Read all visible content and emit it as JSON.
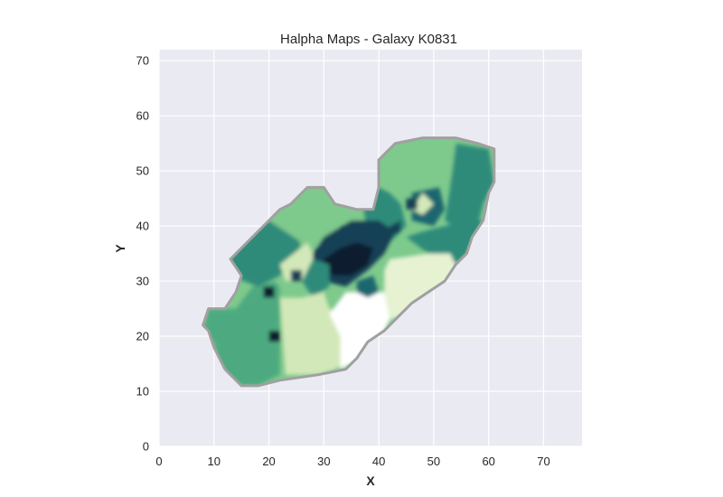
{
  "chart_data": {
    "type": "heatmap",
    "title": "Halpha Maps - Galaxy K0831",
    "xlabel": "X",
    "ylabel": "Y",
    "xlim": [
      0,
      77
    ],
    "ylim": [
      0,
      72
    ],
    "xticks": [
      0,
      10,
      20,
      30,
      40,
      50,
      60,
      70
    ],
    "yticks": [
      0,
      10,
      20,
      30,
      40,
      50,
      60,
      70
    ],
    "grid": true,
    "colormap": "YlGnBu-like (white → light green → teal → dark navy)",
    "colors": {
      "background": "#EAEAF2",
      "grid": "#FFFFFF",
      "outline": "#A0A0A0",
      "white": "#FFFFFF",
      "pale": "#E6F2D2",
      "light_green": "#D2E8B8",
      "green": "#7EC98C",
      "mid_green": "#4DAA80",
      "teal": "#2E8B7A",
      "dark_teal": "#1F6670",
      "navy": "#173F55",
      "darkest": "#0C1F2E"
    },
    "regions": [
      {
        "level": "mid_green",
        "polygon": [
          [
            9,
            25
          ],
          [
            14,
            25
          ],
          [
            17,
            29
          ],
          [
            21,
            30
          ],
          [
            22,
            29
          ],
          [
            22,
            13
          ],
          [
            18,
            11
          ],
          [
            15,
            11
          ],
          [
            11,
            14
          ],
          [
            10,
            19
          ],
          [
            8,
            21
          ]
        ]
      },
      {
        "level": "teal",
        "polygon": [
          [
            13,
            34
          ],
          [
            17,
            39
          ],
          [
            20,
            41
          ],
          [
            25,
            40
          ],
          [
            26,
            35
          ],
          [
            22,
            31
          ],
          [
            18,
            29
          ],
          [
            13,
            31
          ]
        ]
      },
      {
        "level": "green",
        "polygon": [
          [
            20,
            41
          ],
          [
            24,
            44
          ],
          [
            27,
            47
          ],
          [
            30,
            47
          ],
          [
            32,
            43
          ],
          [
            33,
            38
          ],
          [
            30,
            36
          ],
          [
            26,
            37
          ]
        ]
      },
      {
        "level": "light_green",
        "polygon": [
          [
            22,
            33
          ],
          [
            27,
            37
          ],
          [
            29,
            33
          ],
          [
            27,
            30
          ],
          [
            23,
            30
          ]
        ]
      },
      {
        "level": "light_green",
        "polygon": [
          [
            22,
            27
          ],
          [
            26,
            27
          ],
          [
            31,
            25
          ],
          [
            35,
            24
          ],
          [
            37,
            22
          ],
          [
            36,
            16
          ],
          [
            32,
            14
          ],
          [
            29,
            13
          ],
          [
            23,
            13
          ]
        ]
      },
      {
        "level": "green",
        "polygon": [
          [
            33,
            43
          ],
          [
            37,
            44
          ],
          [
            40,
            44
          ],
          [
            38,
            40
          ],
          [
            34,
            39
          ]
        ]
      },
      {
        "level": "teal",
        "polygon": [
          [
            37,
            44
          ],
          [
            40,
            47
          ],
          [
            42,
            46
          ],
          [
            44,
            44
          ],
          [
            45,
            40
          ],
          [
            42,
            37
          ],
          [
            38,
            38
          ]
        ]
      },
      {
        "level": "green",
        "polygon": [
          [
            40,
            52
          ],
          [
            43,
            56
          ],
          [
            49,
            56
          ],
          [
            54,
            55
          ],
          [
            54,
            49
          ],
          [
            48,
            49
          ],
          [
            44,
            46
          ],
          [
            41,
            47
          ]
        ]
      },
      {
        "level": "teal",
        "polygon": [
          [
            54,
            55
          ],
          [
            60,
            54
          ],
          [
            61,
            48
          ],
          [
            59,
            44
          ],
          [
            58,
            40
          ],
          [
            55,
            39
          ],
          [
            52,
            41
          ],
          [
            53,
            47
          ]
        ]
      },
      {
        "level": "dark_teal",
        "polygon": [
          [
            46,
            46
          ],
          [
            51,
            47
          ],
          [
            52,
            43
          ],
          [
            50,
            40
          ],
          [
            46,
            41
          ]
        ]
      },
      {
        "level": "teal",
        "polygon": [
          [
            48,
            39
          ],
          [
            52,
            40
          ],
          [
            56,
            41
          ],
          [
            59,
            41
          ],
          [
            56,
            35
          ],
          [
            54,
            33
          ],
          [
            49,
            35
          ],
          [
            45,
            38
          ]
        ]
      },
      {
        "level": "pale",
        "polygon": [
          [
            42,
            34
          ],
          [
            49,
            35
          ],
          [
            53,
            35
          ],
          [
            55,
            31
          ],
          [
            54,
            29
          ],
          [
            50,
            26
          ],
          [
            45,
            24
          ],
          [
            42,
            23
          ],
          [
            41,
            28
          ],
          [
            41,
            32
          ]
        ]
      },
      {
        "level": "white",
        "polygon": [
          [
            31,
            24
          ],
          [
            34,
            28
          ],
          [
            38,
            28
          ],
          [
            41,
            28
          ],
          [
            42,
            23
          ],
          [
            41,
            21
          ],
          [
            39,
            19
          ],
          [
            37,
            16
          ],
          [
            33,
            14
          ],
          [
            33,
            20
          ]
        ]
      },
      {
        "level": "navy",
        "polygon": [
          [
            28,
            35
          ],
          [
            30,
            38
          ],
          [
            35,
            41
          ],
          [
            40,
            41
          ],
          [
            43,
            39
          ],
          [
            41,
            35
          ],
          [
            38,
            32
          ],
          [
            34,
            29
          ],
          [
            30,
            30
          ],
          [
            28,
            32
          ]
        ]
      },
      {
        "level": "darkest",
        "polygon": [
          [
            30,
            34
          ],
          [
            33,
            36
          ],
          [
            36,
            37
          ],
          [
            39,
            36
          ],
          [
            38,
            33
          ],
          [
            35,
            31
          ],
          [
            32,
            31
          ],
          [
            30,
            32
          ]
        ]
      },
      {
        "level": "teal",
        "polygon": [
          [
            26,
            30
          ],
          [
            28,
            34
          ],
          [
            31,
            33
          ],
          [
            31,
            29
          ],
          [
            28,
            27
          ]
        ]
      },
      {
        "level": "dark_teal",
        "polygon": [
          [
            36,
            30
          ],
          [
            39,
            31
          ],
          [
            40,
            28
          ],
          [
            38,
            27
          ],
          [
            36,
            28
          ]
        ]
      },
      {
        "level": "light_green",
        "polygon": [
          [
            26,
            27
          ],
          [
            30,
            28
          ],
          [
            31,
            25
          ],
          [
            27,
            25
          ]
        ]
      },
      {
        "level": "light_green",
        "polygon": [
          [
            46,
            43
          ],
          [
            48,
            46
          ],
          [
            50,
            44
          ],
          [
            48,
            42
          ]
        ]
      },
      {
        "level": "darkest",
        "polygon": [
          [
            19,
            29
          ],
          [
            21,
            29
          ],
          [
            21,
            27
          ],
          [
            19,
            27
          ]
        ]
      },
      {
        "level": "darkest",
        "polygon": [
          [
            20,
            21
          ],
          [
            22,
            21
          ],
          [
            22,
            19
          ],
          [
            20,
            19
          ]
        ]
      },
      {
        "level": "navy",
        "polygon": [
          [
            45,
            45
          ],
          [
            47,
            45
          ],
          [
            47,
            43
          ],
          [
            45,
            43
          ]
        ]
      },
      {
        "level": "navy",
        "polygon": [
          [
            42,
            40
          ],
          [
            44,
            41
          ],
          [
            44,
            39
          ],
          [
            42,
            38
          ]
        ]
      },
      {
        "level": "navy",
        "polygon": [
          [
            24,
            32
          ],
          [
            26,
            32
          ],
          [
            26,
            30
          ],
          [
            24,
            30
          ]
        ]
      }
    ],
    "outline": [
      [
        9,
        25
      ],
      [
        12,
        25
      ],
      [
        14,
        28
      ],
      [
        15,
        31
      ],
      [
        13,
        34
      ],
      [
        17,
        38
      ],
      [
        20,
        41
      ],
      [
        22,
        43
      ],
      [
        24,
        44
      ],
      [
        26,
        46
      ],
      [
        27,
        47
      ],
      [
        30,
        47
      ],
      [
        32,
        44
      ],
      [
        36,
        43
      ],
      [
        39,
        43
      ],
      [
        40,
        47
      ],
      [
        40,
        52
      ],
      [
        43,
        55
      ],
      [
        48,
        56
      ],
      [
        54,
        56
      ],
      [
        58,
        55
      ],
      [
        61,
        54
      ],
      [
        61,
        48
      ],
      [
        60,
        46
      ],
      [
        59,
        41
      ],
      [
        57,
        38
      ],
      [
        56,
        35
      ],
      [
        54,
        33
      ],
      [
        52,
        30
      ],
      [
        49,
        28
      ],
      [
        46,
        26
      ],
      [
        44,
        24
      ],
      [
        41,
        21
      ],
      [
        38,
        19
      ],
      [
        36,
        16
      ],
      [
        34,
        14
      ],
      [
        29,
        13
      ],
      [
        22,
        12
      ],
      [
        18,
        11
      ],
      [
        15,
        11
      ],
      [
        12,
        14
      ],
      [
        10,
        18
      ],
      [
        9,
        21
      ],
      [
        8,
        22
      ]
    ]
  }
}
